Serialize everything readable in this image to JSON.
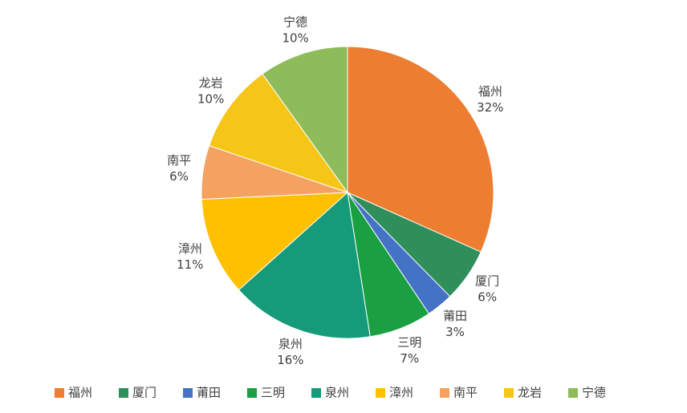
{
  "chart_data": {
    "type": "pie",
    "categories": [
      "福州",
      "厦门",
      "莆田",
      "三明",
      "泉州",
      "漳州",
      "南平",
      "龙岩",
      "宁德"
    ],
    "values": [
      32,
      6,
      3,
      7,
      16,
      11,
      6,
      10,
      10
    ],
    "value_labels": [
      "32%",
      "6%",
      "3%",
      "7%",
      "16%",
      "11%",
      "6%",
      "10%",
      "10%"
    ],
    "colors": [
      "#ed7d31",
      "#2f8f5b",
      "#4472c4",
      "#1aa043",
      "#169b7a",
      "#ffc000",
      "#f4a261",
      "#f5c518",
      "#8fbc5a"
    ],
    "legend": "bottom"
  }
}
